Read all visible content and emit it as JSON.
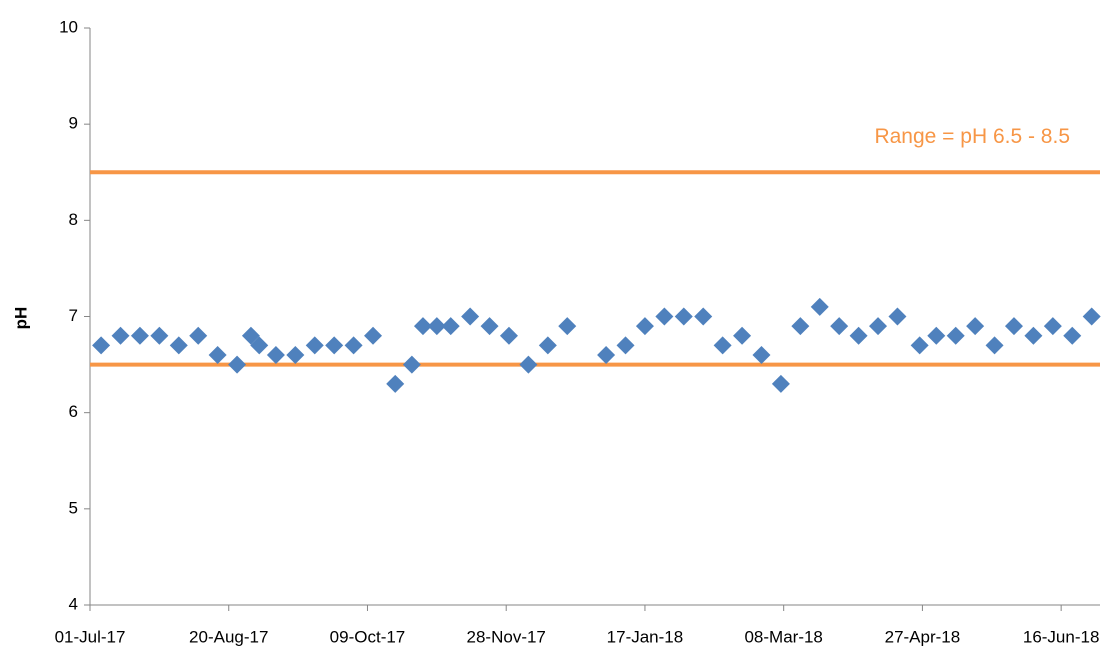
{
  "chart_data": {
    "type": "scatter",
    "y_label": "pH",
    "annotation": "Range = pH 6.5 - 8.5",
    "reference_lines": {
      "values": [
        8.5,
        6.5
      ],
      "color": "#f79646"
    },
    "series": [
      {
        "name": "pH",
        "color": "#4f81bd",
        "x": [
          "2017-07-05",
          "2017-07-12",
          "2017-07-19",
          "2017-07-26",
          "2017-08-02",
          "2017-08-09",
          "2017-08-16",
          "2017-08-23",
          "2017-08-28",
          "2017-08-31",
          "2017-09-06",
          "2017-09-13",
          "2017-09-20",
          "2017-09-27",
          "2017-10-04",
          "2017-10-11",
          "2017-10-19",
          "2017-10-25",
          "2017-10-29",
          "2017-11-03",
          "2017-11-08",
          "2017-11-15",
          "2017-11-22",
          "2017-11-29",
          "2017-12-06",
          "2017-12-13",
          "2017-12-20",
          "2018-01-03",
          "2018-01-10",
          "2018-01-17",
          "2018-01-24",
          "2018-01-31",
          "2018-02-07",
          "2018-02-14",
          "2018-02-21",
          "2018-02-28",
          "2018-03-07",
          "2018-03-14",
          "2018-03-21",
          "2018-03-28",
          "2018-04-04",
          "2018-04-11",
          "2018-04-18",
          "2018-04-26",
          "2018-05-02",
          "2018-05-09",
          "2018-05-16",
          "2018-05-23",
          "2018-05-30",
          "2018-06-06",
          "2018-06-13",
          "2018-06-20",
          "2018-06-27"
        ],
        "values": [
          6.7,
          6.8,
          6.8,
          6.8,
          6.7,
          6.8,
          6.6,
          6.5,
          6.8,
          6.7,
          6.6,
          6.6,
          6.7,
          6.7,
          6.7,
          6.8,
          6.3,
          6.5,
          6.9,
          6.9,
          6.9,
          7.0,
          6.9,
          6.8,
          6.5,
          6.7,
          6.9,
          6.6,
          6.7,
          6.9,
          7.0,
          7.0,
          7.0,
          6.7,
          6.8,
          6.6,
          6.3,
          6.9,
          7.1,
          6.9,
          6.8,
          6.9,
          7.0,
          6.7,
          6.8,
          6.8,
          6.9,
          6.7,
          6.9,
          6.8,
          6.9,
          6.8,
          7.0
        ]
      }
    ],
    "xlim": [
      "2017-07-01",
      "2018-06-30"
    ],
    "xticks": [
      {
        "value": "2017-07-01",
        "label": "01-Jul-17"
      },
      {
        "value": "2017-08-20",
        "label": "20-Aug-17"
      },
      {
        "value": "2017-10-09",
        "label": "09-Oct-17"
      },
      {
        "value": "2017-11-28",
        "label": "28-Nov-17"
      },
      {
        "value": "2018-01-17",
        "label": "17-Jan-18"
      },
      {
        "value": "2018-03-08",
        "label": "08-Mar-18"
      },
      {
        "value": "2018-04-27",
        "label": "27-Apr-18"
      },
      {
        "value": "2018-06-16",
        "label": "16-Jun-18"
      }
    ],
    "ylim": [
      4,
      10
    ],
    "yticks": [
      4,
      5,
      6,
      7,
      8,
      9,
      10
    ],
    "grid": false
  }
}
